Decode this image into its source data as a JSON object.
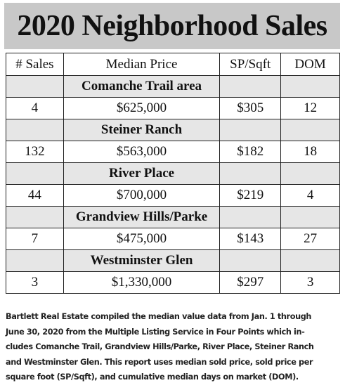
{
  "header": {
    "title": "2020 Neighborhood Sales"
  },
  "table": {
    "columns": [
      "# Sales",
      "Median Price",
      "SP/Sqft",
      "DOM"
    ],
    "groups": [
      {
        "area": "Comanche Trail area",
        "row": [
          "4",
          "$625,000",
          "$305",
          "12"
        ]
      },
      {
        "area": "Steiner Ranch",
        "row": [
          "132",
          "$563,000",
          "$182",
          "18"
        ]
      },
      {
        "area": "River Place",
        "row": [
          "44",
          "$700,000",
          "$219",
          "4"
        ]
      },
      {
        "area": "Grandview Hills/Parke",
        "row": [
          "7",
          "$475,000",
          "$143",
          "27"
        ]
      },
      {
        "area": "Westminster Glen",
        "row": [
          "3",
          "$1,330,000",
          "$297",
          "3"
        ]
      }
    ]
  },
  "note": {
    "lines": [
      "Bartlett Real Estate compiled the median value data from Jan. 1 through",
      "June 30, 2020 from the Multiple Listing Service in Four Points which in-",
      "cludes Comanche Trail, Grandview Hills/Parke, River Place, Steiner Ranch",
      "and Westminster Glen. This report uses median sold price, sold price per",
      "square foot (SP/Sqft), and cumulative median days on market (DOM)."
    ]
  }
}
